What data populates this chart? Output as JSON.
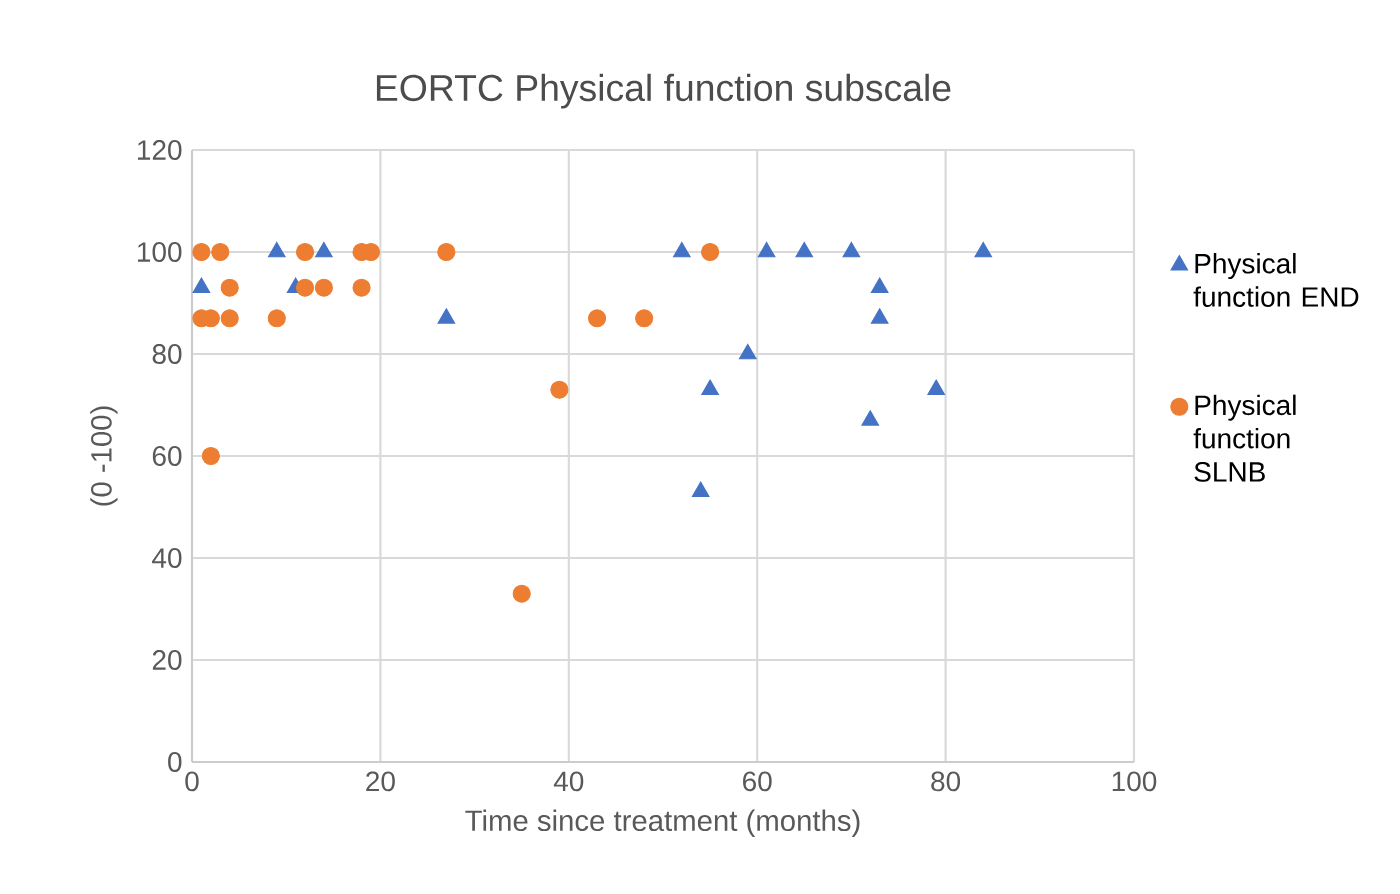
{
  "chart_data": {
    "type": "scatter",
    "title": "EORTC Physical function subscale",
    "xlabel": "Time since treatment (months)",
    "ylabel": "(0 -100)",
    "xlim": [
      0,
      100
    ],
    "xticks": [
      0,
      20,
      40,
      60,
      80,
      100
    ],
    "ylim": [
      0,
      120
    ],
    "yticks": [
      0,
      20,
      40,
      60,
      80,
      100,
      120
    ],
    "grid": true,
    "legend": "right",
    "series": [
      {
        "name": "Physical function END",
        "color": "#4472c4",
        "marker": "triangle",
        "x": [
          1,
          9,
          11,
          14,
          27,
          52,
          54,
          55,
          59,
          61,
          65,
          70,
          72,
          73,
          73,
          79,
          84
        ],
        "values": [
          93,
          100,
          93,
          100,
          87,
          100,
          53,
          73,
          80,
          100,
          100,
          100,
          67,
          93,
          87,
          73,
          100
        ]
      },
      {
        "name": "Physical function SLNB",
        "color": "#ed7d31",
        "marker": "circle",
        "x": [
          1,
          3,
          12,
          18,
          19,
          27,
          55,
          4,
          12,
          14,
          18,
          1,
          2,
          4,
          9,
          43,
          48,
          39,
          2,
          35
        ],
        "values": [
          100,
          100,
          100,
          100,
          100,
          100,
          100,
          93,
          93,
          93,
          93,
          87,
          87,
          87,
          87,
          87,
          87,
          73,
          60,
          33
        ]
      }
    ]
  }
}
